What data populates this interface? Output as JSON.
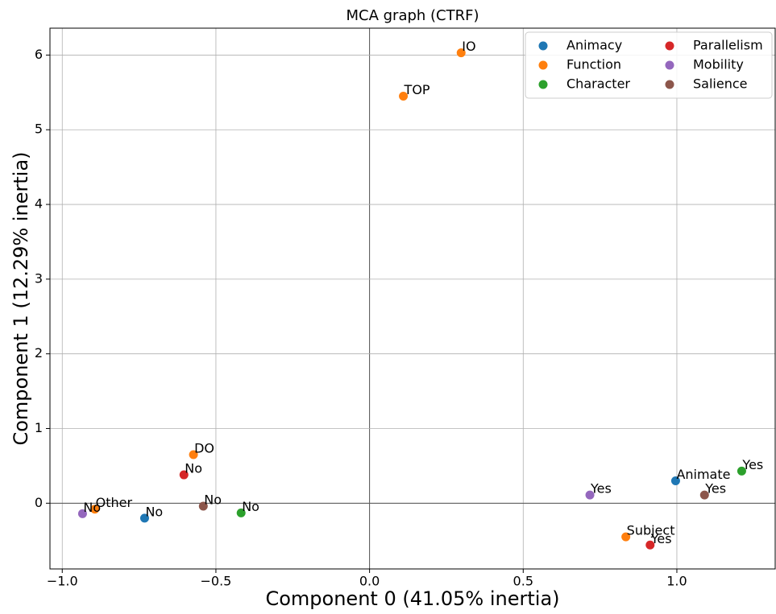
{
  "chart_data": {
    "type": "scatter",
    "title": "MCA graph (CTRF)",
    "x_label": "Component 0 (41.05% inertia)",
    "y_label": "Component 1 (12.29% inertia)",
    "xlim": [
      -1.04,
      1.32
    ],
    "ylim": [
      -0.88,
      6.36
    ],
    "xticks": [
      {
        "value": -1,
        "label": "−1.0"
      },
      {
        "value": -0.5,
        "label": "−0.5"
      },
      {
        "value": 0,
        "label": "0.0"
      },
      0.5,
      {
        "value": 1,
        "label": "1.0"
      }
    ],
    "yticks": [
      0,
      1,
      2,
      3,
      4,
      5,
      6
    ],
    "grid": true,
    "legend": "upper right",
    "series": [
      {
        "name": "Animacy",
        "color": "#1f77b4",
        "x": [
          -0.732,
          0.996
        ],
        "y": [
          -0.2,
          0.3
        ],
        "labels": [
          "No",
          "Animate"
        ]
      },
      {
        "name": "Function",
        "color": "#ff7f0e",
        "x": [
          0.298,
          0.11,
          -0.573,
          -0.894,
          0.834
        ],
        "y": [
          6.03,
          5.45,
          0.65,
          -0.08,
          -0.45
        ],
        "labels": [
          "IO",
          "TOP",
          "DO",
          "Other",
          "Subject"
        ]
      },
      {
        "name": "Character",
        "color": "#2ca02c",
        "x": [
          -0.418,
          1.211
        ],
        "y": [
          -0.13,
          0.43
        ],
        "labels": [
          "No",
          "Yes"
        ]
      },
      {
        "name": "Parallelism",
        "color": "#d62728",
        "x": [
          -0.604,
          0.913
        ],
        "y": [
          0.38,
          -0.56
        ],
        "labels": [
          "No",
          "Yes"
        ]
      },
      {
        "name": "Mobility",
        "color": "#9467bd",
        "x": [
          -0.934,
          0.717
        ],
        "y": [
          -0.14,
          0.11
        ],
        "labels": [
          "No",
          "Yes"
        ]
      },
      {
        "name": "Salience",
        "color": "#8c564b",
        "x": [
          -0.541,
          1.09
        ],
        "y": [
          -0.04,
          0.11
        ],
        "labels": [
          "No",
          "Yes"
        ]
      }
    ]
  }
}
